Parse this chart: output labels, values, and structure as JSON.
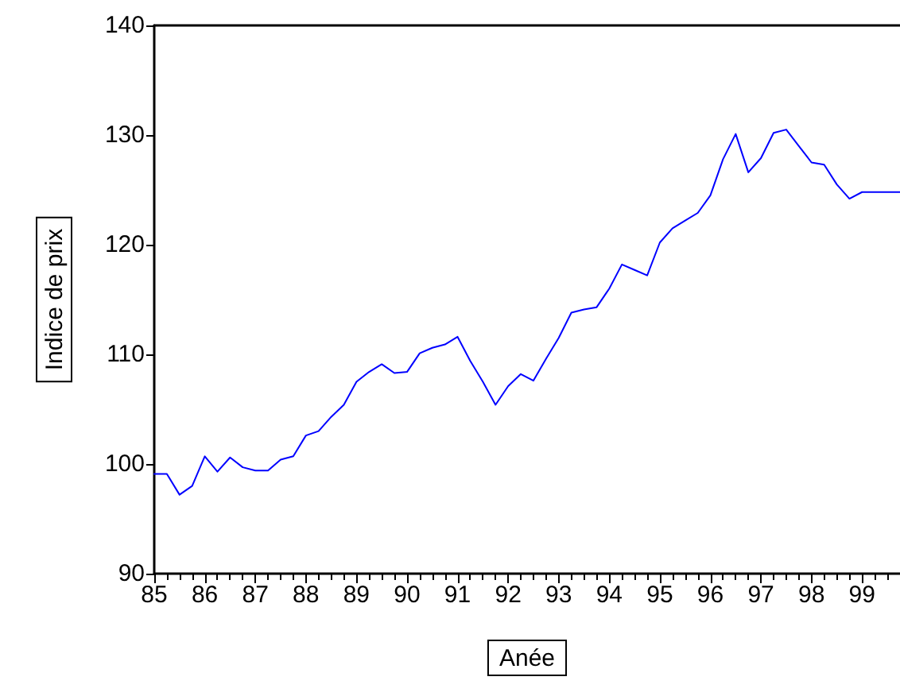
{
  "chart_data": {
    "type": "line",
    "xlabel": "Anée",
    "ylabel": "Indice de prix",
    "x": [
      85,
      85.25,
      85.5,
      85.75,
      86,
      86.25,
      86.5,
      86.75,
      87,
      87.25,
      87.5,
      87.75,
      88,
      88.25,
      88.5,
      88.75,
      89,
      89.25,
      89.5,
      89.75,
      90,
      90.25,
      90.5,
      90.75,
      91,
      91.25,
      91.5,
      91.75,
      92,
      92.25,
      92.5,
      92.75,
      93,
      93.25,
      93.5,
      93.75,
      94,
      94.25,
      94.5,
      94.75,
      95,
      95.25,
      95.5,
      95.75,
      96,
      96.25,
      96.5,
      96.75,
      97,
      97.25,
      97.5,
      97.75,
      98,
      98.25,
      98.5,
      98.75,
      99,
      99.25,
      99.5,
      99.75
    ],
    "series": [
      {
        "color": "#0000ff",
        "values": [
          99.1,
          99.1,
          97.2,
          98.0,
          100.7,
          99.3,
          100.6,
          99.7,
          99.4,
          99.4,
          100.4,
          100.7,
          102.6,
          103.0,
          104.3,
          105.4,
          107.5,
          108.4,
          109.1,
          108.3,
          108.4,
          110.1,
          110.6,
          110.9,
          111.6,
          109.4,
          107.5,
          105.4,
          107.1,
          108.2,
          107.6,
          109.6,
          111.5,
          113.8,
          114.1,
          114.3,
          116.0,
          118.2,
          117.7,
          117.2,
          120.2,
          121.5,
          122.2,
          122.9,
          124.5,
          127.8,
          130.1,
          126.6,
          127.9,
          130.2,
          130.5,
          129.0,
          127.5,
          127.3,
          125.5,
          124.2,
          124.8,
          124.8,
          124.8,
          124.8
        ]
      }
    ],
    "xlim": [
      85,
      99.75
    ],
    "xticks": [
      85,
      86,
      87,
      88,
      89,
      90,
      91,
      92,
      93,
      94,
      95,
      96,
      97,
      98,
      99
    ],
    "ylim": [
      90,
      140
    ],
    "yticks": [
      90,
      100,
      110,
      120,
      130,
      140
    ],
    "grid": false,
    "marker": "none",
    "line_style": "solid"
  }
}
